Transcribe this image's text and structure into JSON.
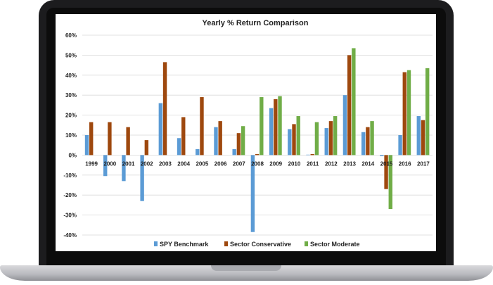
{
  "chart_data": {
    "type": "bar",
    "title": "Yearly % Return Comparison",
    "xlabel": "",
    "ylabel": "",
    "categories": [
      "1999",
      "2000",
      "2001",
      "2002",
      "2003",
      "2004",
      "2005",
      "2006",
      "2007",
      "2008",
      "2009",
      "2010",
      "2011",
      "2012",
      "2013",
      "2014",
      "2015",
      "2016",
      "2017"
    ],
    "series": [
      {
        "name": "SPY Benchmark",
        "color": "#5b9bd5",
        "values": [
          10,
          -10.5,
          -13,
          -23,
          26,
          8.5,
          3,
          14,
          3,
          -38.5,
          23.5,
          13,
          0,
          13.5,
          30,
          11.5,
          -0.5,
          10,
          19.5
        ]
      },
      {
        "name": "Sector Conservative",
        "color": "#9e480e",
        "values": [
          16.5,
          16.5,
          14,
          7.5,
          46.5,
          19,
          29,
          17,
          11,
          0.5,
          28,
          15.5,
          0.5,
          17,
          50,
          14,
          -17,
          41.5,
          17.5
        ]
      },
      {
        "name": "Sector Moderate",
        "color": "#70ad47",
        "values": [
          null,
          null,
          null,
          null,
          null,
          null,
          null,
          null,
          14.5,
          29,
          29.5,
          19.5,
          16.5,
          19.5,
          53.5,
          17,
          -27,
          42.5,
          43.5
        ]
      }
    ],
    "ylim": [
      -40,
      60
    ],
    "yticks": [
      "-40%",
      "-30%",
      "-20%",
      "-10%",
      "0%",
      "10%",
      "20%",
      "30%",
      "40%",
      "50%",
      "60%"
    ],
    "grid": true,
    "legend_position": "bottom"
  }
}
